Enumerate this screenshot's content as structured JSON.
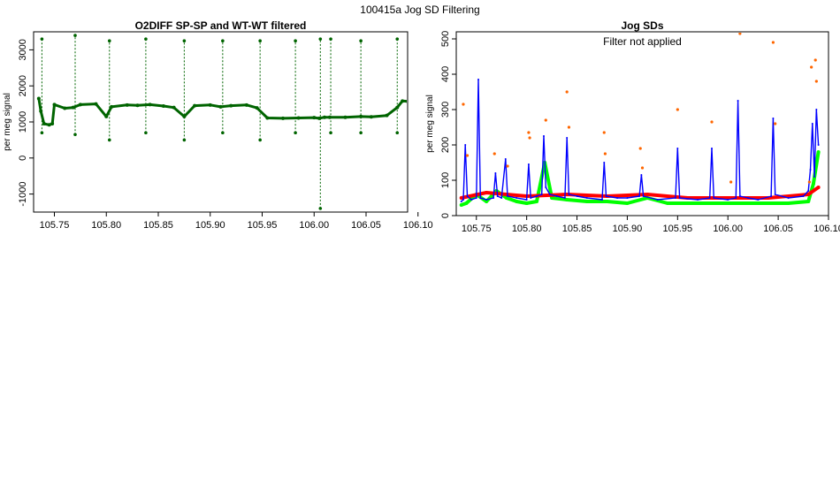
{
  "page": {
    "title": "100415a   Jog SD Filtering"
  },
  "chart_data": [
    {
      "type": "scatter",
      "title": "O2DIFF SP-SP and WT-WT filtered",
      "xlabel": "",
      "ylabel": "per meg signal",
      "xlim": [
        105.73,
        106.09
      ],
      "ylim": [
        -1500,
        3500
      ],
      "xticks": [
        "105.75",
        "105.80",
        "105.85",
        "105.90",
        "105.95",
        "106.00",
        "106.05",
        "106.10"
      ],
      "yticks": [
        "-1000",
        "0",
        "1000",
        "2000",
        "3000"
      ],
      "grid": false,
      "colors": {
        "series": "#006400"
      },
      "series": [
        {
          "x": [
            105.735,
            105.737,
            105.74,
            105.745,
            105.748,
            105.75,
            105.76,
            105.768,
            105.775,
            105.79,
            105.8,
            105.805,
            105.82,
            105.83,
            105.842,
            105.855,
            105.865,
            105.875,
            105.885,
            105.9,
            105.91,
            105.92,
            105.935,
            105.945,
            105.955,
            105.97,
            105.985,
            106.0,
            106.005,
            106.01,
            106.015,
            106.03,
            106.045,
            106.055,
            106.07,
            106.08,
            106.085,
            106.09
          ],
          "y": [
            1650,
            1300,
            950,
            920,
            950,
            1480,
            1380,
            1400,
            1480,
            1500,
            1150,
            1420,
            1470,
            1460,
            1480,
            1440,
            1400,
            1150,
            1450,
            1470,
            1420,
            1450,
            1470,
            1390,
            1110,
            1100,
            1110,
            1120,
            1100,
            1130,
            1130,
            1130,
            1150,
            1140,
            1180,
            1400,
            1580,
            1570
          ]
        }
      ],
      "spikes": [
        {
          "x": 105.738,
          "y": [
            700,
            3300
          ]
        },
        {
          "x": 105.77,
          "y": [
            650,
            3400
          ]
        },
        {
          "x": 105.803,
          "y": [
            500,
            3250
          ]
        },
        {
          "x": 105.838,
          "y": [
            700,
            3300
          ]
        },
        {
          "x": 105.875,
          "y": [
            500,
            3250
          ]
        },
        {
          "x": 105.912,
          "y": [
            700,
            3250
          ]
        },
        {
          "x": 105.948,
          "y": [
            500,
            3250
          ]
        },
        {
          "x": 105.982,
          "y": [
            700,
            3250
          ]
        },
        {
          "x": 106.006,
          "y": [
            -1400,
            3300
          ]
        },
        {
          "x": 106.016,
          "y": [
            700,
            3300
          ]
        },
        {
          "x": 106.045,
          "y": [
            700,
            3250
          ]
        },
        {
          "x": 106.08,
          "y": [
            700,
            3300
          ]
        }
      ]
    },
    {
      "type": "line",
      "title": "Jog SDs",
      "annotation": "Filter not applied",
      "xlabel": "",
      "ylabel": "per meg signal",
      "xlim": [
        105.73,
        106.1
      ],
      "ylim": [
        0,
        520
      ],
      "xticks": [
        "105.75",
        "105.80",
        "105.85",
        "105.90",
        "105.95",
        "106.00",
        "106.05",
        "106.10"
      ],
      "yticks": [
        "0",
        "100",
        "200",
        "300",
        "400",
        "500"
      ],
      "grid": false,
      "colors": {
        "blue": "#0000ff",
        "red": "#ff0000",
        "green": "#00ff00",
        "orange": "#ff6600"
      },
      "series": [
        {
          "color": "blue",
          "x": [
            105.735,
            105.737,
            105.739,
            105.741,
            105.745,
            105.75,
            105.752,
            105.754,
            105.76,
            105.767,
            105.769,
            105.771,
            105.775,
            105.779,
            105.781,
            105.79,
            105.8,
            105.802,
            105.804,
            105.81,
            105.815,
            105.817,
            105.819,
            105.823,
            105.83,
            105.838,
            105.84,
            105.842,
            105.85,
            105.86,
            105.875,
            105.877,
            105.879,
            105.89,
            105.9,
            105.912,
            105.914,
            105.916,
            105.93,
            105.948,
            105.95,
            105.952,
            105.97,
            105.982,
            105.984,
            105.986,
            106.0,
            106.008,
            106.01,
            106.012,
            106.02,
            106.03,
            106.043,
            106.045,
            106.047,
            106.06,
            106.075,
            106.08,
            106.082,
            106.084,
            106.086,
            106.088,
            106.09
          ],
          "y": [
            40,
            45,
            200,
            55,
            45,
            50,
            385,
            50,
            45,
            50,
            120,
            55,
            50,
            160,
            55,
            50,
            45,
            145,
            50,
            55,
            60,
            225,
            80,
            60,
            55,
            50,
            220,
            60,
            55,
            50,
            45,
            150,
            55,
            50,
            50,
            55,
            115,
            55,
            45,
            50,
            190,
            50,
            45,
            50,
            190,
            50,
            45,
            50,
            325,
            55,
            50,
            45,
            55,
            275,
            60,
            50,
            55,
            70,
            130,
            260,
            110,
            300,
            200
          ]
        },
        {
          "color": "red",
          "x": [
            105.735,
            105.76,
            105.8,
            105.84,
            105.88,
            105.92,
            105.96,
            106.0,
            106.04,
            106.08,
            106.09
          ],
          "y": [
            50,
            65,
            55,
            60,
            55,
            60,
            50,
            50,
            50,
            60,
            80
          ]
        },
        {
          "color": "green",
          "x": [
            105.735,
            105.74,
            105.75,
            105.76,
            105.77,
            105.78,
            105.79,
            105.8,
            105.81,
            105.818,
            105.825,
            105.84,
            105.86,
            105.88,
            105.9,
            105.92,
            105.94,
            105.96,
            105.98,
            106.0,
            106.02,
            106.04,
            106.06,
            106.08,
            106.085,
            106.09
          ],
          "y": [
            30,
            35,
            60,
            40,
            70,
            50,
            40,
            35,
            40,
            150,
            50,
            45,
            40,
            40,
            35,
            50,
            35,
            35,
            35,
            35,
            35,
            35,
            35,
            40,
            90,
            180
          ]
        }
      ],
      "outliers": {
        "color": "orange",
        "x": [
          105.737,
          105.741,
          105.768,
          105.781,
          105.802,
          105.803,
          105.819,
          105.84,
          105.842,
          105.877,
          105.878,
          105.913,
          105.915,
          105.95,
          105.984,
          106.003,
          106.012,
          106.045,
          106.047,
          106.081,
          106.083,
          106.087,
          106.088
        ],
        "y": [
          315,
          170,
          175,
          140,
          235,
          220,
          270,
          350,
          250,
          235,
          175,
          190,
          135,
          300,
          265,
          95,
          515,
          490,
          260,
          95,
          420,
          440,
          380
        ]
      }
    }
  ]
}
